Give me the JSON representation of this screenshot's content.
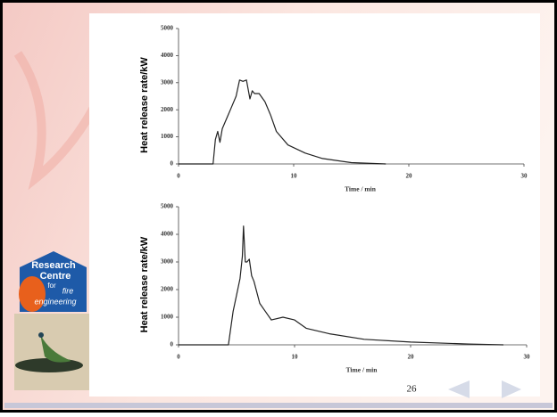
{
  "chart_data": [
    {
      "type": "line",
      "y_label": "Heat release rate/kW",
      "x_label": "Time / min",
      "x": [
        0,
        3.0,
        3.2,
        3.4,
        3.6,
        3.8,
        4.0,
        4.5,
        5.0,
        5.3,
        5.6,
        5.9,
        6.2,
        6.4,
        6.6,
        7.0,
        7.5,
        8.0,
        8.5,
        9.5,
        11,
        12.5,
        15,
        18
      ],
      "values": [
        0,
        0,
        900,
        1200,
        800,
        1300,
        1500,
        2000,
        2500,
        3100,
        3050,
        3100,
        2400,
        2700,
        2600,
        2600,
        2300,
        1800,
        1200,
        700,
        400,
        200,
        50,
        0
      ],
      "color": "#222222",
      "xlim": [
        0,
        30
      ],
      "xticks": [
        0,
        10,
        20,
        30
      ],
      "ylim": [
        0,
        5000
      ],
      "yticks": [
        0,
        1000,
        2000,
        3000,
        4000,
        5000
      ]
    },
    {
      "type": "line",
      "y_label": "Heat release rate/kW",
      "x_label": "Time / min",
      "x": [
        0,
        4.3,
        4.7,
        5.0,
        5.3,
        5.5,
        5.6,
        5.75,
        5.9,
        6.1,
        6.3,
        6.5,
        7.0,
        7.5,
        8.0,
        9.0,
        10.0,
        11,
        13,
        16,
        20,
        25,
        28
      ],
      "values": [
        0,
        0,
        1200,
        1800,
        2400,
        3200,
        4300,
        3000,
        3000,
        3100,
        2500,
        2300,
        1500,
        1200,
        900,
        1000,
        900,
        600,
        400,
        200,
        100,
        30,
        0
      ],
      "color": "#222222",
      "xlim": [
        0,
        30
      ],
      "xticks": [
        0,
        10,
        20,
        30
      ],
      "ylim": [
        0,
        5000
      ],
      "yticks": [
        0,
        1000,
        2000,
        3000,
        4000,
        5000
      ]
    }
  ],
  "slide": {
    "page_number": "26",
    "logo": [
      "Research",
      "Centre",
      "for",
      "fire",
      "engineering"
    ]
  }
}
